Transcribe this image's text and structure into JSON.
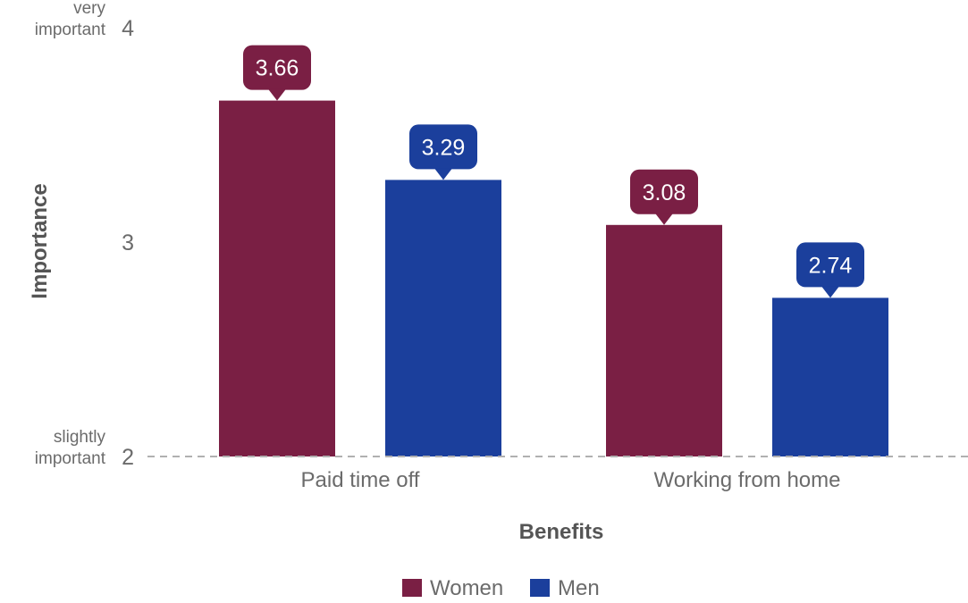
{
  "chart_data": {
    "type": "bar",
    "categories": [
      "Paid time off",
      "Working from home"
    ],
    "series": [
      {
        "name": "Women",
        "color": "#7a1f44",
        "values": [
          3.66,
          3.08
        ]
      },
      {
        "name": "Men",
        "color": "#1b3f9c",
        "values": [
          3.29,
          2.74
        ]
      }
    ],
    "value_labels": [
      [
        "3.66",
        "3.08"
      ],
      [
        "3.29",
        "2.74"
      ]
    ],
    "title": "",
    "xlabel": "Benefits",
    "ylabel": "Importance",
    "ylim": [
      2,
      4
    ],
    "yticks": [
      {
        "value": 4,
        "label": "4",
        "desc": [
          "very",
          "important"
        ]
      },
      {
        "value": 3,
        "label": "3",
        "desc": []
      },
      {
        "value": 2,
        "label": "2",
        "desc": [
          "slightly",
          "important"
        ]
      }
    ],
    "baseline_style": "dashed",
    "grid": false,
    "legend_position": "bottom-center",
    "colors": {
      "axis_text": "#6b6b6b",
      "axis_title": "#555555",
      "baseline": "#b0b0b0",
      "label_text": "#ffffff"
    }
  }
}
